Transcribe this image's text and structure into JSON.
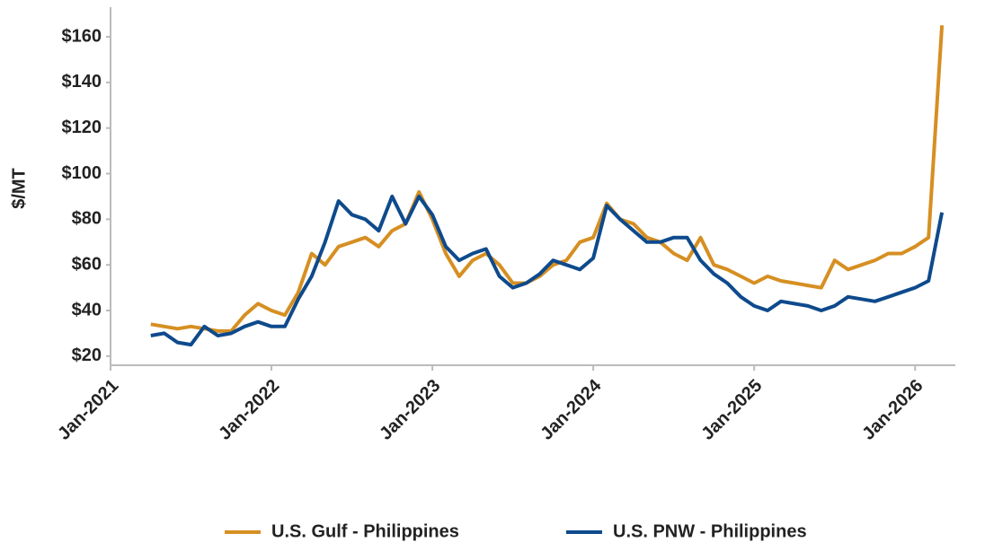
{
  "chart_data": {
    "type": "line",
    "y_label": "$/MT",
    "x": [
      "2021-04",
      "2021-05",
      "2021-06",
      "2021-07",
      "2021-08",
      "2021-09",
      "2021-10",
      "2021-11",
      "2021-12",
      "2022-01",
      "2022-02",
      "2022-03",
      "2022-04",
      "2022-05",
      "2022-06",
      "2022-07",
      "2022-08",
      "2022-09",
      "2022-10",
      "2022-11",
      "2022-12",
      "2023-01",
      "2023-02",
      "2023-03",
      "2023-04",
      "2023-05",
      "2023-06",
      "2023-07",
      "2023-08",
      "2023-09",
      "2023-10",
      "2023-11",
      "2023-12",
      "2024-01",
      "2024-02",
      "2024-03",
      "2024-04",
      "2024-05",
      "2024-06",
      "2024-07",
      "2024-08",
      "2024-09",
      "2024-10",
      "2024-11",
      "2024-12",
      "2025-01",
      "2025-02",
      "2025-03",
      "2025-04",
      "2025-05",
      "2025-06",
      "2025-07",
      "2025-08",
      "2025-09",
      "2025-10",
      "2025-11",
      "2025-12",
      "2026-01",
      "2026-02",
      "2026-03"
    ],
    "series": [
      {
        "name": "U.S. Gulf - Philippines",
        "color": "#d68f22",
        "values": [
          34,
          33,
          32,
          33,
          32,
          31,
          31,
          38,
          43,
          40,
          38,
          48,
          65,
          60,
          68,
          70,
          72,
          68,
          75,
          78,
          92,
          80,
          65,
          55,
          62,
          65,
          60,
          52,
          52,
          55,
          60,
          62,
          70,
          72,
          87,
          80,
          78,
          72,
          70,
          65,
          62,
          72,
          60,
          58,
          55,
          52,
          55,
          53,
          52,
          51,
          50,
          62,
          58,
          60,
          62,
          65,
          65,
          68,
          72,
          165
        ]
      },
      {
        "name": "U.S. PNW - Philippines",
        "color": "#0e4a8c",
        "values": [
          29,
          30,
          26,
          25,
          33,
          29,
          30,
          33,
          35,
          33,
          33,
          45,
          55,
          70,
          88,
          82,
          80,
          75,
          90,
          78,
          90,
          82,
          68,
          62,
          65,
          67,
          55,
          50,
          52,
          56,
          62,
          60,
          58,
          63,
          86,
          80,
          75,
          70,
          70,
          72,
          72,
          62,
          56,
          52,
          46,
          42,
          40,
          44,
          43,
          42,
          40,
          42,
          46,
          45,
          44,
          46,
          48,
          50,
          53,
          83
        ]
      }
    ],
    "xlim": [
      "2021-01",
      "2026-04"
    ],
    "xticks": [
      {
        "value": "2021-01",
        "label": "Jan-2021"
      },
      {
        "value": "2022-01",
        "label": "Jan-2022"
      },
      {
        "value": "2023-01",
        "label": "Jan-2023"
      },
      {
        "value": "2024-01",
        "label": "Jan-2024"
      },
      {
        "value": "2025-01",
        "label": "Jan-2025"
      },
      {
        "value": "2026-01",
        "label": "Jan-2026"
      }
    ],
    "ylim": [
      16,
      173
    ],
    "yticks": [
      {
        "value": 20,
        "label": "$20"
      },
      {
        "value": 40,
        "label": "$40"
      },
      {
        "value": 60,
        "label": "$60"
      },
      {
        "value": 80,
        "label": "$80"
      },
      {
        "value": 100,
        "label": "$100"
      },
      {
        "value": 120,
        "label": "$120"
      },
      {
        "value": 140,
        "label": "$140"
      },
      {
        "value": 160,
        "label": "$160"
      }
    ],
    "grid": false,
    "legend": "bottom"
  }
}
